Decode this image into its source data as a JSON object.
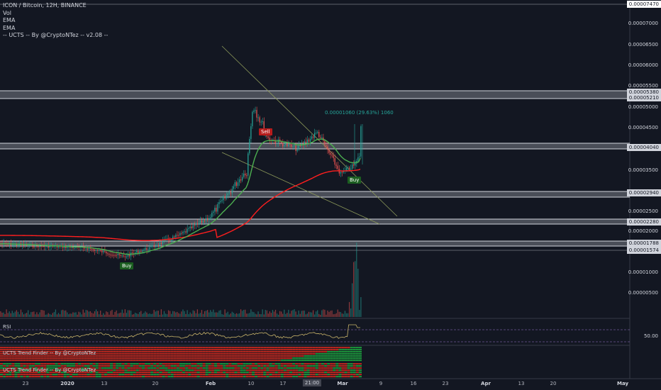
{
  "header": {
    "symbol_line": "ICON / Bitcoin, 12H, BINANCE",
    "indicators": [
      "Vol",
      "EMA",
      "EMA",
      "-- UCTS -- By @CryptoNTez -- v2.08 --"
    ]
  },
  "price_axis": {
    "labels": [
      "0.00007000",
      "0.00006500",
      "0.00006000",
      "0.00005500",
      "0.00005000",
      "0.00004500",
      "0.00003500",
      "0.00002500",
      "0.00002000",
      "0.00001500",
      "0.00001000",
      "0.00000500"
    ],
    "tags": [
      {
        "text": "0.00007470",
        "color": "#ffffff"
      },
      {
        "text": "0.00005380",
        "color": "#d1d4dc"
      },
      {
        "text": "0.00005210",
        "color": "#d1d4dc"
      },
      {
        "text": "0.00004640",
        "color": "#26a69a"
      },
      {
        "text": "0.00004040",
        "color": "#d1d4dc"
      },
      {
        "text": "0.00002940",
        "color": "#d1d4dc"
      },
      {
        "text": "0.00002280",
        "color": "#d1d4dc"
      },
      {
        "text": "0.00001788",
        "color": "#d1d4dc"
      },
      {
        "text": "0.00001574",
        "color": "#d1d4dc"
      }
    ]
  },
  "signals": {
    "sell": "Sell",
    "buy_left": "Buy",
    "buy_right": "Buy"
  },
  "measure": "0.00001060 (29.63%) 1060",
  "rsi": {
    "title": "RSI",
    "level_label": "50.00"
  },
  "ucts_panes": [
    "UCTS Trend Finder -- By @CryptoNTez",
    "UCTS Trend Finder -- By @CryptoNTez"
  ],
  "time_axis": [
    "23",
    "2020",
    "13",
    "20",
    "Feb",
    "10",
    "17",
    "21:00",
    "Mar",
    "9",
    "16",
    "23",
    "Apr",
    "13",
    "20",
    "May"
  ],
  "colors": {
    "bg": "#131722",
    "up": "#26a69a",
    "down": "#ef5350",
    "ema_fast": "#4caf50",
    "ema_slow": "#ff1e1e",
    "rsi": "#c9b46a",
    "zone": "#b2b5be"
  }
}
